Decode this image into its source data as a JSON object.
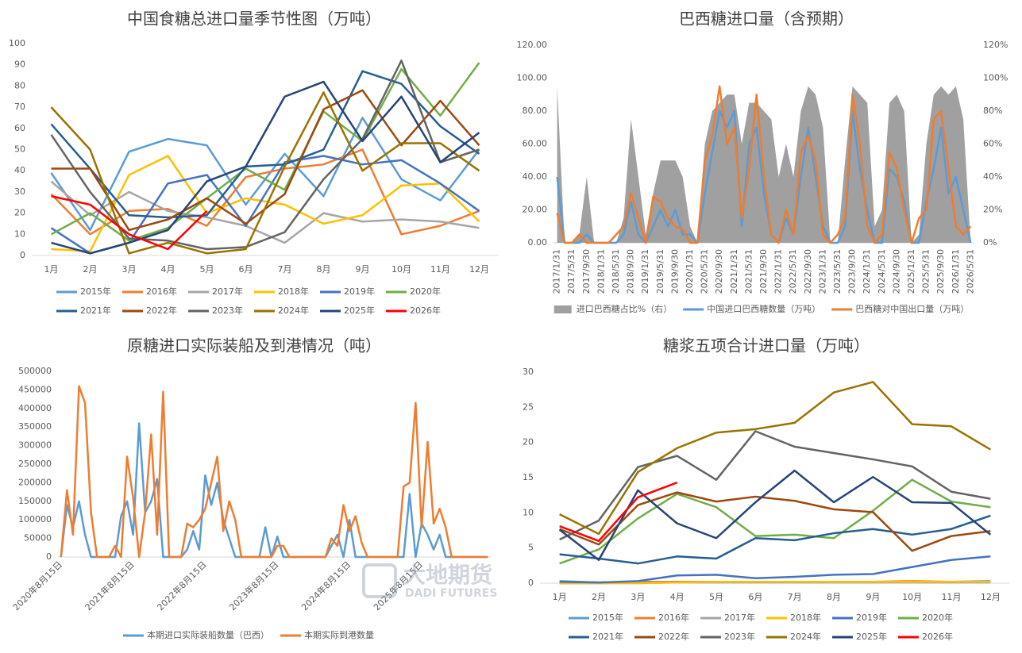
{
  "chart_data": [
    {
      "type": "line",
      "title": "中国食糖总进口量季节性图（万吨）",
      "categories": [
        "1月",
        "2月",
        "3月",
        "4月",
        "5月",
        "6月",
        "7月",
        "8月",
        "9月",
        "10月",
        "11月",
        "12月"
      ],
      "ylim": [
        0,
        100
      ],
      "yticks": [
        0,
        10,
        20,
        30,
        40,
        50,
        60,
        70,
        80,
        90,
        100
      ],
      "legend": "bottom",
      "series": [
        {
          "name": "2015年",
          "color": "#5b9bd5",
          "values": [
            39,
            12,
            49,
            55,
            52,
            24,
            48,
            28,
            65,
            36,
            26,
            50
          ]
        },
        {
          "name": "2016年",
          "color": "#ed7d31",
          "values": [
            29,
            10,
            21,
            22,
            14,
            37,
            41,
            43,
            50,
            10,
            14,
            21
          ]
        },
        {
          "name": "2017年",
          "color": "#a5a5a5",
          "values": [
            35,
            19,
            30,
            21,
            18,
            14,
            6,
            20,
            16,
            17,
            16,
            13
          ]
        },
        {
          "name": "2018年",
          "color": "#ffc000",
          "values": [
            3,
            2,
            38,
            47,
            20,
            27,
            24,
            15,
            19,
            33,
            34,
            16
          ]
        },
        {
          "name": "2019年",
          "color": "#4472c4",
          "values": [
            13,
            1,
            6,
            34,
            38,
            14,
            44,
            47,
            43,
            45,
            34,
            21
          ]
        },
        {
          "name": "2020年",
          "color": "#70ad47",
          "values": [
            10,
            20,
            7,
            13,
            27,
            41,
            31,
            68,
            54,
            88,
            66,
            91
          ]
        },
        {
          "name": "2021年",
          "color": "#255e91",
          "values": [
            62,
            41,
            19,
            18,
            19,
            42,
            43,
            50,
            87,
            81,
            61,
            48
          ]
        },
        {
          "name": "2022年",
          "color": "#9e480e",
          "values": [
            41,
            41,
            12,
            17,
            27,
            15,
            29,
            69,
            78,
            52,
            73,
            52
          ]
        },
        {
          "name": "2023年",
          "color": "#636363",
          "values": [
            57,
            30,
            8,
            7,
            3,
            4,
            11,
            36,
            55,
            92,
            44,
            50
          ]
        },
        {
          "name": "2024年",
          "color": "#997300",
          "values": [
            70,
            50,
            1,
            6,
            1,
            3,
            42,
            77,
            40,
            53,
            53,
            40
          ]
        },
        {
          "name": "2025年",
          "color": "#264478",
          "values": [
            6,
            1,
            6,
            12,
            35,
            42,
            75,
            82,
            54,
            75,
            44,
            58
          ]
        },
        {
          "name": "2026年",
          "color": "#ff0000",
          "values": [
            28,
            24,
            10,
            3,
            21,
            null,
            null,
            null,
            null,
            null,
            null,
            null
          ]
        }
      ]
    },
    {
      "type": "line",
      "title": "巴西糖进口量（含预期）",
      "categories": [
        "2017/1/31",
        null,
        "2017/5/31",
        null,
        "2017/9/30",
        null,
        "2018/1/31",
        null,
        "2018/5/31",
        null,
        "2018/9/30",
        null,
        "2019/1/31",
        null,
        "2019/5/31",
        null,
        "2019/9/30",
        null,
        "2020/1/31",
        null,
        "2020/5/31",
        null,
        "2020/9/30",
        null,
        "2021/1/31",
        null,
        "2021/5/31",
        null,
        "2021/9/30",
        null,
        "2022/1/31",
        null,
        "2022/5/31",
        null,
        "2022/9/30",
        null,
        "2023/1/31",
        null,
        "2023/5/31",
        null,
        "2023/9/30",
        null,
        "2024/1/31",
        null,
        "2024/5/31",
        null,
        "2024/9/30",
        null,
        "2025/1/31",
        null,
        "2025/5/31",
        null,
        "2025/9/30",
        null,
        "2026/1/31",
        null,
        "2026/5/31"
      ],
      "ylim": [
        0,
        120
      ],
      "yticks": [
        {
          "value": 0,
          "label": "0.00"
        },
        {
          "value": 20,
          "label": "20.00"
        },
        {
          "value": 40,
          "label": "40.00"
        },
        {
          "value": 60,
          "label": "60.00"
        },
        {
          "value": 80,
          "label": "80.00"
        },
        {
          "value": 100,
          "label": "100.00"
        },
        {
          "value": 120,
          "label": "120.00"
        }
      ],
      "y2lim": [
        0,
        120
      ],
      "y2ticks": [
        {
          "value": 0,
          "label": "0%"
        },
        {
          "value": 20,
          "label": "20%"
        },
        {
          "value": 40,
          "label": "40%"
        },
        {
          "value": 60,
          "label": "60%"
        },
        {
          "value": 80,
          "label": "80%"
        },
        {
          "value": 100,
          "label": "100%"
        },
        {
          "value": 120,
          "label": "120%"
        }
      ],
      "legend": "bottom",
      "series": [
        {
          "name": "进口巴西糖占比%（右）",
          "type": "area",
          "axis": "y2",
          "color": "#a0a0a0",
          "values": [
            95,
            0,
            0,
            5,
            40,
            0,
            0,
            0,
            0,
            15,
            75,
            40,
            5,
            30,
            50,
            50,
            50,
            40,
            10,
            0,
            60,
            80,
            85,
            90,
            90,
            60,
            85,
            85,
            80,
            75,
            40,
            60,
            40,
            80,
            95,
            90,
            70,
            0,
            0,
            50,
            95,
            90,
            85,
            10,
            20,
            85,
            90,
            80,
            0,
            5,
            60,
            90,
            95,
            90,
            95,
            75,
            0
          ]
        },
        {
          "name": "中国进口巴西糖数量（万吨）",
          "color": "#5b9bd5",
          "values": [
            40,
            0,
            0,
            0,
            5,
            0,
            0,
            0,
            0,
            5,
            25,
            5,
            0,
            10,
            20,
            10,
            20,
            5,
            5,
            0,
            30,
            55,
            80,
            70,
            80,
            10,
            60,
            70,
            30,
            5,
            0,
            15,
            5,
            40,
            70,
            40,
            10,
            0,
            0,
            10,
            80,
            45,
            20,
            0,
            0,
            45,
            40,
            25,
            0,
            0,
            25,
            45,
            70,
            30,
            40,
            20,
            0
          ]
        },
        {
          "name": "巴西糖对中国出口量（万吨）",
          "color": "#ed7d31",
          "values": [
            18,
            0,
            0,
            5,
            0,
            0,
            0,
            0,
            5,
            10,
            30,
            15,
            0,
            28,
            25,
            15,
            10,
            8,
            0,
            0,
            50,
            65,
            95,
            60,
            70,
            15,
            45,
            90,
            40,
            5,
            0,
            20,
            5,
            55,
            65,
            50,
            5,
            0,
            5,
            15,
            90,
            60,
            10,
            0,
            5,
            55,
            45,
            20,
            0,
            15,
            20,
            75,
            80,
            45,
            10,
            5,
            10
          ]
        }
      ]
    },
    {
      "type": "line",
      "title": "原糖进口实际装船及到港情况（吨）",
      "categories": [
        "2020年8月15日",
        null,
        null,
        null,
        null,
        null,
        null,
        null,
        null,
        null,
        null,
        null,
        "2021年8月15日",
        null,
        null,
        null,
        null,
        null,
        null,
        null,
        null,
        null,
        null,
        null,
        "2022年8月15日",
        null,
        null,
        null,
        null,
        null,
        null,
        null,
        null,
        null,
        null,
        null,
        "2023年8月15日",
        null,
        null,
        null,
        null,
        null,
        null,
        null,
        null,
        null,
        null,
        null,
        "2024年8月15日",
        null,
        null,
        null,
        null,
        null,
        null,
        null,
        null,
        null,
        null,
        null,
        "2025年8月15日",
        null,
        null,
        null,
        null,
        null,
        null,
        null,
        null,
        null,
        null,
        null
      ],
      "ylim": [
        0,
        500000
      ],
      "yticks": [
        0,
        50000,
        100000,
        150000,
        200000,
        250000,
        300000,
        350000,
        400000,
        450000,
        500000
      ],
      "legend": "bottom",
      "series": [
        {
          "name": "本期进口实际装船数量（巴西）",
          "color": "#5b9bd5",
          "values": [
            0,
            140000,
            80000,
            150000,
            60000,
            0,
            0,
            0,
            0,
            0,
            110000,
            150000,
            60000,
            360000,
            120000,
            150000,
            210000,
            0,
            0,
            0,
            0,
            20000,
            70000,
            20000,
            220000,
            140000,
            200000,
            100000,
            50000,
            0,
            0,
            0,
            0,
            0,
            80000,
            0,
            55000,
            0,
            0,
            0,
            0,
            0,
            0,
            0,
            0,
            30000,
            60000,
            0,
            100000,
            0,
            0,
            0,
            0,
            0,
            0,
            0,
            0,
            0,
            170000,
            0,
            90000,
            60000,
            20000,
            60000,
            0,
            0,
            0,
            0,
            0,
            0,
            0,
            0
          ]
        },
        {
          "name": "本期实际到港数量",
          "color": "#ed7d31",
          "values": [
            0,
            180000,
            60000,
            460000,
            415000,
            120000,
            0,
            0,
            0,
            30000,
            0,
            270000,
            160000,
            0,
            120000,
            330000,
            60000,
            445000,
            0,
            0,
            0,
            90000,
            80000,
            100000,
            130000,
            200000,
            270000,
            70000,
            150000,
            100000,
            0,
            0,
            0,
            0,
            0,
            0,
            30000,
            30000,
            0,
            0,
            0,
            0,
            0,
            0,
            0,
            50000,
            30000,
            140000,
            70000,
            110000,
            40000,
            0,
            0,
            0,
            0,
            0,
            0,
            190000,
            200000,
            415000,
            80000,
            310000,
            90000,
            130000,
            80000,
            0,
            0,
            0,
            0,
            0,
            0,
            0
          ]
        }
      ]
    },
    {
      "type": "line",
      "title": "糖浆五项合计进口量（万吨）",
      "categories": [
        "1月",
        "2月",
        "3月",
        "4月",
        "5月",
        "6月",
        "7月",
        "8月",
        "9月",
        "10月",
        "11月",
        "12月"
      ],
      "ylim": [
        0,
        30
      ],
      "yticks": [
        0,
        5,
        10,
        15,
        20,
        25,
        30
      ],
      "legend": "bottom",
      "series": [
        {
          "name": "2015年",
          "color": "#5b9bd5",
          "values": [
            0.3,
            0.1,
            0.2,
            0.2,
            0.2,
            0.2,
            0.2,
            0.2,
            0.2,
            0.2,
            0.2,
            0.3
          ]
        },
        {
          "name": "2016年",
          "color": "#ed7d31",
          "values": [
            0,
            0,
            0.1,
            0.2,
            0.2,
            0.2,
            0.2,
            0.2,
            0.2,
            0.3,
            0.2,
            0.2
          ]
        },
        {
          "name": "2017年",
          "color": "#a5a5a5",
          "values": [
            0,
            0,
            0,
            0.1,
            0.1,
            0.1,
            0.1,
            0.1,
            0.1,
            0.1,
            0.1,
            0.1
          ]
        },
        {
          "name": "2018年",
          "color": "#ffc000",
          "values": [
            0,
            0,
            0,
            0.1,
            0.2,
            0.2,
            0.2,
            0.2,
            0.2,
            0.2,
            0.2,
            0.2
          ]
        },
        {
          "name": "2019年",
          "color": "#4472c4",
          "values": [
            0.2,
            0.1,
            0.3,
            1.1,
            1.2,
            0.7,
            0.9,
            1.2,
            1.3,
            2.3,
            3.3,
            3.8
          ]
        },
        {
          "name": "2020年",
          "color": "#70ad47",
          "values": [
            2.8,
            4.8,
            9.2,
            12.7,
            10.8,
            6.7,
            6.9,
            6.4,
            10.3,
            14.7,
            11.6,
            10.8
          ]
        },
        {
          "name": "2021年",
          "color": "#255e91",
          "values": [
            4.1,
            3.5,
            2.8,
            3.8,
            3.5,
            6.4,
            6.1,
            7.1,
            7.7,
            6.9,
            7.7,
            9.6
          ]
        },
        {
          "name": "2022年",
          "color": "#9e480e",
          "values": [
            7.7,
            5.5,
            11.1,
            12.9,
            11.6,
            12.3,
            11.7,
            10.5,
            10.1,
            4.6,
            6.7,
            7.4
          ]
        },
        {
          "name": "2023年",
          "color": "#636363",
          "values": [
            6.2,
            8.9,
            16.5,
            18.1,
            14.7,
            21.6,
            19.4,
            18.5,
            17.6,
            16.6,
            13.0,
            12.0
          ]
        },
        {
          "name": "2024年",
          "color": "#997300",
          "values": [
            9.8,
            7.0,
            15.8,
            19.2,
            21.4,
            21.9,
            22.8,
            27.1,
            28.6,
            22.6,
            22.3,
            19.0
          ]
        },
        {
          "name": "2025年",
          "color": "#264478",
          "values": [
            7.6,
            3.3,
            13.2,
            8.5,
            6.4,
            11.5,
            16.0,
            11.5,
            15.1,
            11.5,
            11.4,
            6.9
          ]
        },
        {
          "name": "2026年",
          "color": "#ff0000",
          "values": [
            8.1,
            6.0,
            12.2,
            14.3,
            null,
            null,
            null,
            null,
            null,
            null,
            null,
            null
          ]
        }
      ]
    }
  ],
  "watermark": {
    "text": "大地期货",
    "subtext": "DADI FUTURES"
  }
}
